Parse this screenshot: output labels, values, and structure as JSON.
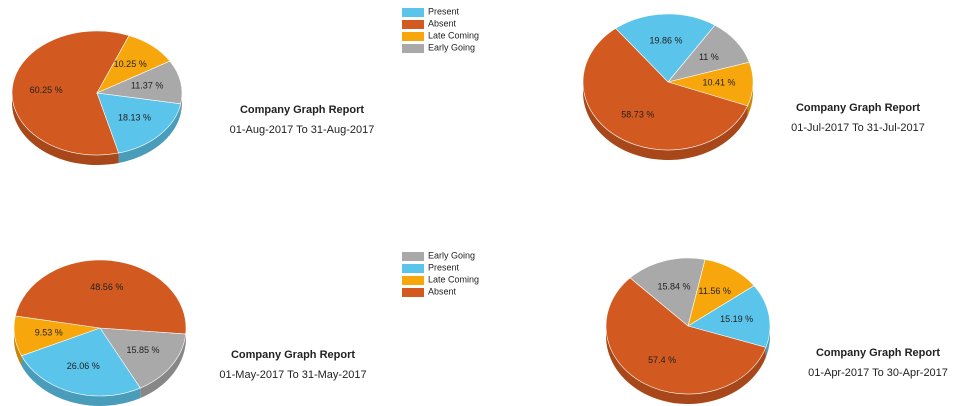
{
  "chart_data": [
    {
      "type": "pie",
      "title": "Company Graph Report",
      "subtitle": "01-Aug-2017 To 31-Aug-2017",
      "categories": [
        "Present",
        "Absent",
        "Late Coming",
        "Early Going"
      ],
      "values": [
        18.13,
        60.25,
        10.25,
        11.37
      ],
      "value_labels": [
        "18.13 %",
        "60.25 %",
        "10.25 %",
        "11.37 %"
      ],
      "colors": [
        "#5bc4ea",
        "#d2591f",
        "#f7a70c",
        "#a9a9a9"
      ],
      "legend": true
    },
    {
      "type": "pie",
      "title": "Company Graph Report",
      "subtitle": "01-Jul-2017 To 31-Jul-2017",
      "categories": [
        "Present",
        "Early Going",
        "Late Coming",
        "Absent"
      ],
      "values": [
        19.86,
        11,
        10.41,
        58.73
      ],
      "value_labels": [
        "19.86 %",
        "11 %",
        "10.41 %",
        "58.73 %"
      ],
      "colors": [
        "#5bc4ea",
        "#a9a9a9",
        "#f7a70c",
        "#d2591f"
      ],
      "legend": false
    },
    {
      "type": "pie",
      "title": "Company Graph Report",
      "subtitle": "01-May-2017 To 31-May-2017",
      "categories": [
        "Early Going",
        "Present",
        "Late Coming",
        "Absent"
      ],
      "values": [
        15.85,
        26.06,
        9.53,
        48.56
      ],
      "value_labels": [
        "15.85 %",
        "26.06 %",
        "9.53 %",
        "48.56 %"
      ],
      "colors": [
        "#a9a9a9",
        "#5bc4ea",
        "#f7a70c",
        "#d2591f"
      ],
      "legend": true
    },
    {
      "type": "pie",
      "title": "Company Graph Report",
      "subtitle": "01-Apr-2017 To 30-Apr-2017",
      "categories": [
        "Early Going",
        "Late Coming",
        "Present",
        "Absent"
      ],
      "values": [
        15.84,
        11.56,
        15.19,
        57.4
      ],
      "value_labels": [
        "15.84 %",
        "11.56 %",
        "15.19 %",
        "57.4 %"
      ],
      "colors": [
        "#a9a9a9",
        "#f7a70c",
        "#5bc4ea",
        "#d2591f"
      ],
      "legend": false
    }
  ]
}
